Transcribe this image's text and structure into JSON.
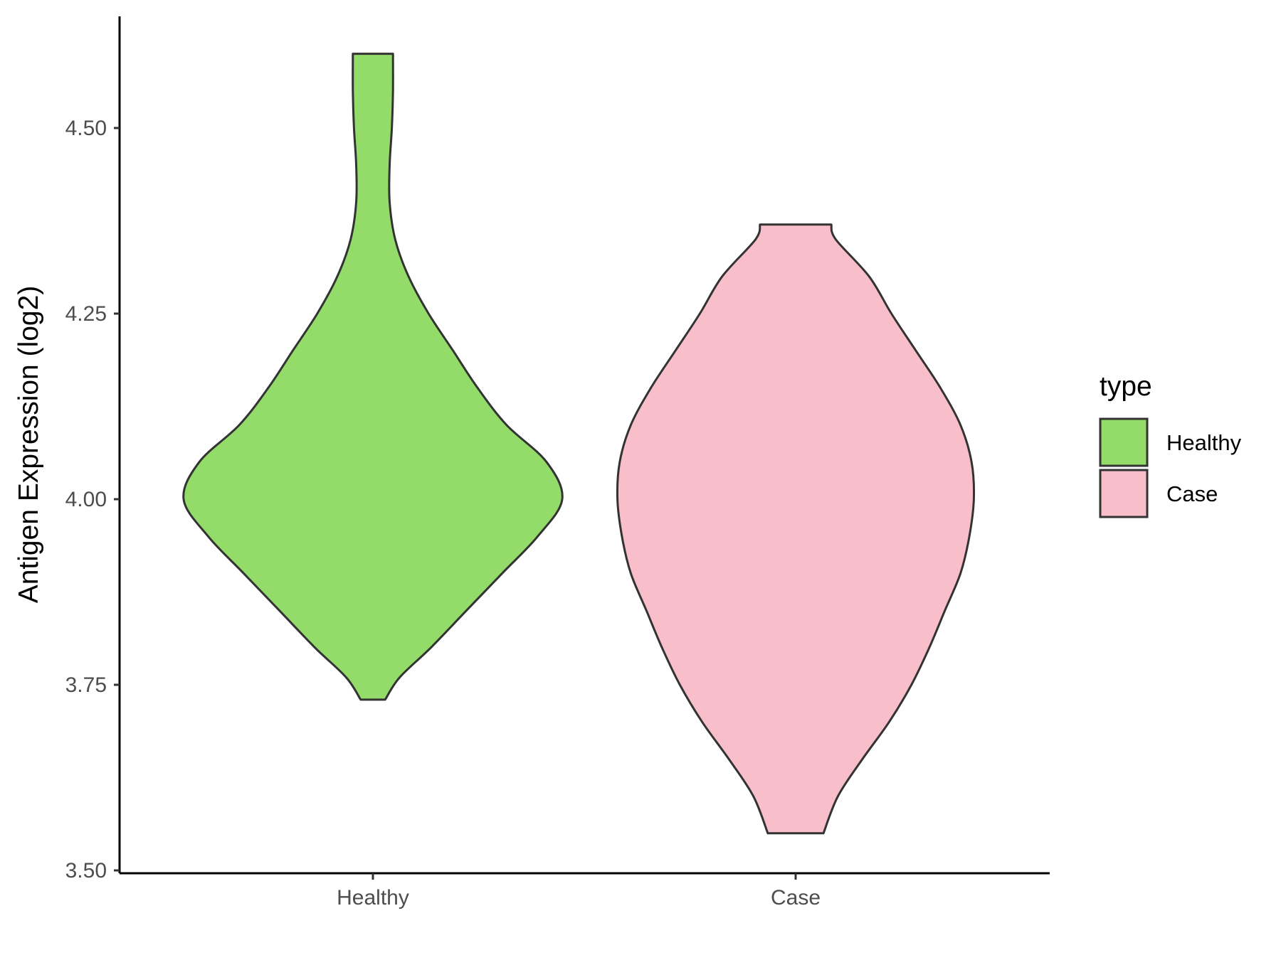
{
  "chart_data": {
    "type": "violin",
    "ylabel": "Antigen Expression (log2)",
    "xlabel": "",
    "ylim": [
      3.5,
      4.65
    ],
    "yticks": [
      3.5,
      3.75,
      4.0,
      4.25,
      4.5
    ],
    "ytick_labels": [
      "3.50",
      "3.75",
      "4.00",
      "4.25",
      "4.50"
    ],
    "categories": [
      "Healthy",
      "Case"
    ],
    "grid": false,
    "legend": {
      "title": "type",
      "position": "right",
      "entries": [
        {
          "label": "Healthy",
          "color": "#93dc6a"
        },
        {
          "label": "Case",
          "color": "#f8bfcb"
        }
      ]
    },
    "series": [
      {
        "category": "Healthy",
        "color": "#93dc6a",
        "min": 3.73,
        "max": 4.6,
        "density": [
          [
            3.73,
            0.055
          ],
          [
            3.76,
            0.12
          ],
          [
            3.8,
            0.26
          ],
          [
            3.85,
            0.42
          ],
          [
            3.9,
            0.58
          ],
          [
            3.95,
            0.74
          ],
          [
            4.0,
            0.85
          ],
          [
            4.05,
            0.78
          ],
          [
            4.1,
            0.6
          ],
          [
            4.15,
            0.47
          ],
          [
            4.2,
            0.36
          ],
          [
            4.25,
            0.25
          ],
          [
            4.3,
            0.16
          ],
          [
            4.35,
            0.1
          ],
          [
            4.4,
            0.075
          ],
          [
            4.45,
            0.075
          ],
          [
            4.5,
            0.085
          ],
          [
            4.55,
            0.09
          ],
          [
            4.6,
            0.09
          ]
        ]
      },
      {
        "category": "Case",
        "color": "#f8bfcb",
        "min": 3.55,
        "max": 4.37,
        "density": [
          [
            3.55,
            0.125
          ],
          [
            3.6,
            0.19
          ],
          [
            3.65,
            0.3
          ],
          [
            3.7,
            0.42
          ],
          [
            3.75,
            0.52
          ],
          [
            3.8,
            0.6
          ],
          [
            3.85,
            0.67
          ],
          [
            3.9,
            0.74
          ],
          [
            3.95,
            0.78
          ],
          [
            4.0,
            0.8
          ],
          [
            4.05,
            0.79
          ],
          [
            4.1,
            0.74
          ],
          [
            4.15,
            0.65
          ],
          [
            4.2,
            0.54
          ],
          [
            4.25,
            0.43
          ],
          [
            4.3,
            0.33
          ],
          [
            4.35,
            0.18
          ],
          [
            4.37,
            0.16
          ]
        ]
      }
    ]
  }
}
